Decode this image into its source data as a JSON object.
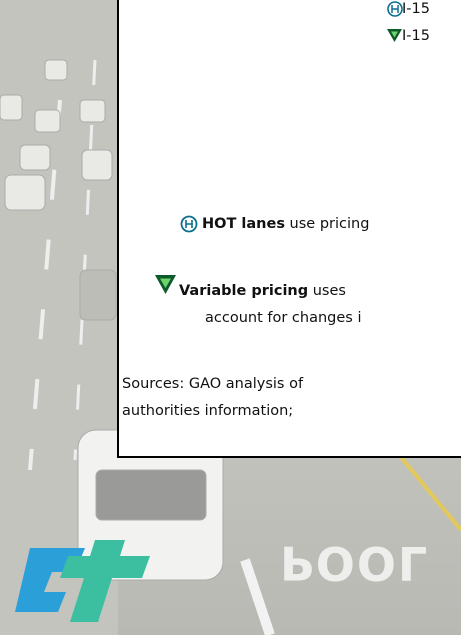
{
  "box": {
    "routes": [
      "I-15",
      "I-15"
    ],
    "notes": [
      {
        "term": "HOT lanes",
        "text": " use pricing"
      },
      {
        "term": "Variable pricing",
        "text": " uses",
        "continuation": "account for changes i"
      }
    ],
    "sources": [
      "Sources: GAO analysis of",
      "authorities information;"
    ]
  },
  "road_marking": "POOL"
}
